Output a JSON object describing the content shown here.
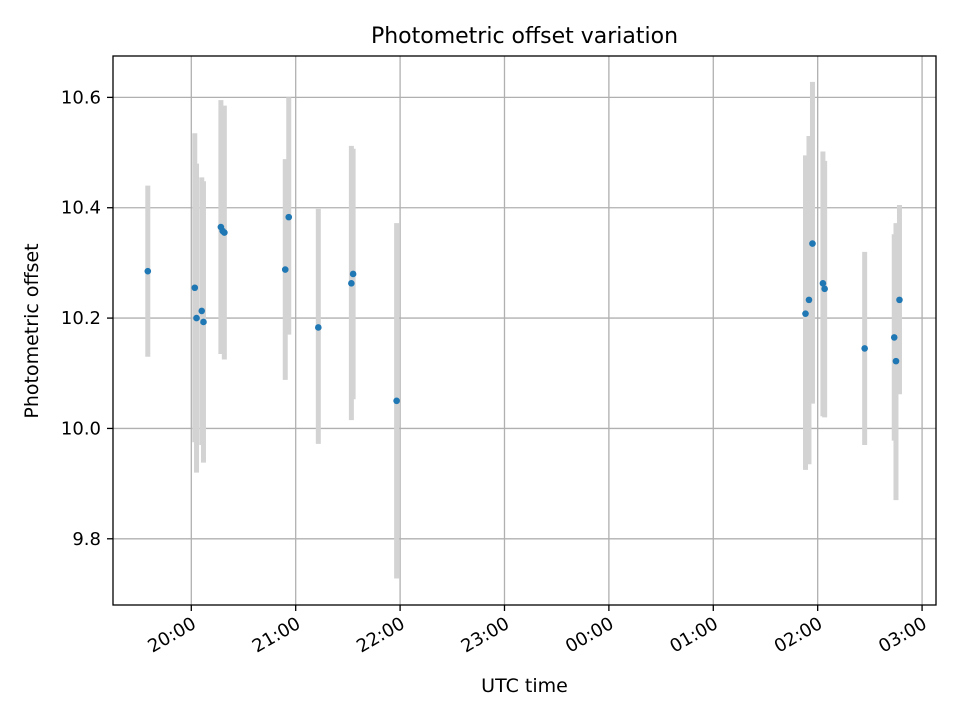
{
  "chart_data": {
    "type": "scatter",
    "title": "Photometric offset variation",
    "xlabel": "UTC time",
    "ylabel": "Photometric offset",
    "x_is_time": true,
    "xlim": [
      "19:15",
      "03:08"
    ],
    "ylim": [
      9.68,
      10.675
    ],
    "x_ticks": [
      "20:00",
      "21:00",
      "22:00",
      "23:00",
      "00:00",
      "01:00",
      "02:00",
      "03:00"
    ],
    "y_ticks": [
      9.8,
      10.0,
      10.2,
      10.4,
      10.6
    ],
    "grid": true,
    "colors": {
      "point": "#1f77b4",
      "errorbar": "#d3d3d3",
      "grid": "#b0b0b0",
      "axis": "#000000"
    },
    "points": [
      {
        "t": "19:35",
        "y": 10.285,
        "lo": 10.13,
        "hi": 10.44
      },
      {
        "t": "20:02",
        "y": 10.255,
        "lo": 9.975,
        "hi": 10.535
      },
      {
        "t": "20:03",
        "y": 10.2,
        "lo": 9.92,
        "hi": 10.48
      },
      {
        "t": "20:06",
        "y": 10.213,
        "lo": 9.97,
        "hi": 10.455
      },
      {
        "t": "20:07",
        "y": 10.193,
        "lo": 9.938,
        "hi": 10.448
      },
      {
        "t": "20:17",
        "y": 10.365,
        "lo": 10.135,
        "hi": 10.595
      },
      {
        "t": "20:18",
        "y": 10.358,
        "lo": 10.14,
        "hi": 10.58
      },
      {
        "t": "20:19",
        "y": 10.355,
        "lo": 10.125,
        "hi": 10.585
      },
      {
        "t": "20:54",
        "y": 10.288,
        "lo": 10.088,
        "hi": 10.488
      },
      {
        "t": "20:56",
        "y": 10.383,
        "lo": 10.17,
        "hi": 10.6
      },
      {
        "t": "21:13",
        "y": 10.183,
        "lo": 9.972,
        "hi": 10.398
      },
      {
        "t": "21:32",
        "y": 10.263,
        "lo": 10.015,
        "hi": 10.512
      },
      {
        "t": "21:33",
        "y": 10.28,
        "lo": 10.053,
        "hi": 10.507
      },
      {
        "t": "21:58",
        "y": 10.05,
        "lo": 9.728,
        "hi": 10.372
      },
      {
        "t": "01:53",
        "y": 10.208,
        "lo": 9.925,
        "hi": 10.495
      },
      {
        "t": "01:55",
        "y": 10.233,
        "lo": 9.935,
        "hi": 10.53
      },
      {
        "t": "01:57",
        "y": 10.335,
        "lo": 10.045,
        "hi": 10.628
      },
      {
        "t": "02:03",
        "y": 10.263,
        "lo": 10.022,
        "hi": 10.502
      },
      {
        "t": "02:04",
        "y": 10.253,
        "lo": 10.02,
        "hi": 10.485
      },
      {
        "t": "02:27",
        "y": 10.145,
        "lo": 9.97,
        "hi": 10.32
      },
      {
        "t": "02:44",
        "y": 10.165,
        "lo": 9.978,
        "hi": 10.352
      },
      {
        "t": "02:45",
        "y": 10.122,
        "lo": 9.87,
        "hi": 10.372
      },
      {
        "t": "02:47",
        "y": 10.233,
        "lo": 10.062,
        "hi": 10.405
      }
    ]
  }
}
